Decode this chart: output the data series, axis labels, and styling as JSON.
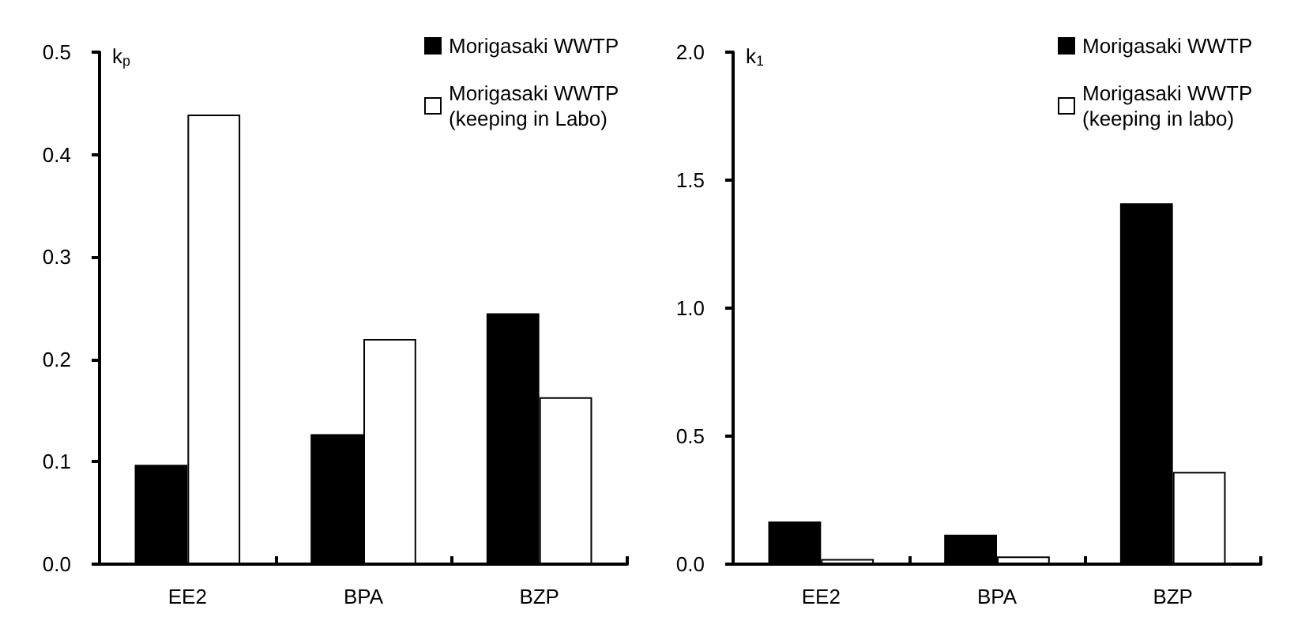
{
  "chart_data": [
    {
      "type": "bar",
      "ylabel": "k$_{p}$",
      "categories": [
        "EE2",
        "BPA",
        "BZP"
      ],
      "series": [
        {
          "name": "Morigasaki WWTP",
          "color": "#000000",
          "values": [
            0.097,
            0.127,
            0.245
          ]
        },
        {
          "name": "Morigasaki WWTP (keeping in Labo)",
          "color": "#ffffff",
          "values": [
            0.439,
            0.22,
            0.163
          ]
        }
      ],
      "ylim": [
        0,
        0.5
      ],
      "yticks": [
        {
          "value": 0,
          "label": "0.0"
        },
        0.1,
        0.2,
        0.3,
        0.4,
        0.5
      ],
      "grid": false,
      "legend": "top right"
    },
    {
      "type": "bar",
      "ylabel": "k$_{1}$",
      "categories": [
        "EE2",
        "BPA",
        "BZP"
      ],
      "series": [
        {
          "name": "Morigasaki WWTP",
          "color": "#000000",
          "values": [
            0.167,
            0.115,
            1.41
          ]
        },
        {
          "name": "Morigasaki WWTP (keeping in labo)",
          "color": "#ffffff",
          "values": [
            0.02,
            0.03,
            0.36
          ]
        }
      ],
      "ylim": [
        0,
        2.0
      ],
      "yticks": [
        {
          "value": 0,
          "label": "0.0"
        },
        0.5,
        {
          "value": 1,
          "label": "1.0"
        },
        1.5,
        {
          "value": 2,
          "label": "2.0"
        }
      ],
      "grid": false,
      "legend": "top right"
    }
  ]
}
